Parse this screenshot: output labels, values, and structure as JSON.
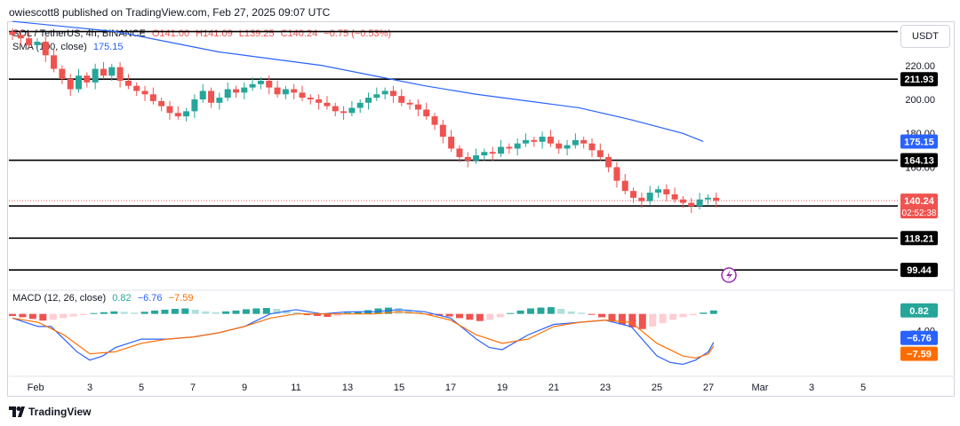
{
  "header": {
    "text": "owiescott8 published on TradingView.com, Feb 27, 2025 09:07 UTC"
  },
  "legend": {
    "symbol": "SOL / TetherUS, 4h, BINANCE",
    "open": "O141.00",
    "high": "H141.09",
    "low": "L139.25",
    "close": "C140.24",
    "change": "−0.75 (−0.53%)",
    "sma_name": "SMA (100, close)",
    "sma_value": "175.15",
    "macd_name": "MACD (12, 26, close)",
    "macd_hist": "0.82",
    "macd_line": "−6.76",
    "macd_signal": "−7.59"
  },
  "currency": "USDT",
  "footer": {
    "brand": "TradingView"
  },
  "colors": {
    "up": "#26a69a",
    "down": "#ef5350",
    "sma": "#2962ff",
    "macd": "#2962ff",
    "signal": "#ff6d00",
    "level": "#000000"
  },
  "chart_data": [
    {
      "type": "candlestick",
      "title": "SOL / TetherUS, 4h, BINANCE",
      "x_ticks": [
        "Feb",
        "3",
        "5",
        "7",
        "9",
        "11",
        "13",
        "15",
        "17",
        "19",
        "21",
        "23",
        "25",
        "27",
        "Mar",
        "3",
        "5"
      ],
      "y_ticks": [
        "220.00",
        "200.00",
        "180.00",
        "160.00"
      ],
      "ylim": [
        88,
        245
      ],
      "levels": [
        {
          "value": 240,
          "label": ""
        },
        {
          "value": 211.93,
          "label": "211.93"
        },
        {
          "value": 164.13,
          "label": "164.13"
        },
        {
          "value": 137.16,
          "label": "137.16"
        },
        {
          "value": 118.21,
          "label": "118.21"
        },
        {
          "value": 99.44,
          "label": "99.44"
        }
      ],
      "price_tag": {
        "value": 140.24,
        "label": "140.24",
        "countdown": "02:52:38"
      },
      "sma_tag": {
        "value": 175.15,
        "label": "175.15"
      },
      "sma_100": [
        [
          0,
          246
        ],
        [
          2,
          243
        ],
        [
          4,
          240
        ],
        [
          6,
          234
        ],
        [
          8,
          228
        ],
        [
          10,
          224
        ],
        [
          12,
          220
        ],
        [
          14,
          214
        ],
        [
          16,
          208
        ],
        [
          18,
          203
        ],
        [
          20,
          199
        ],
        [
          22,
          195
        ],
        [
          24,
          188
        ],
        [
          26,
          180
        ],
        [
          26.8,
          175.15
        ]
      ],
      "candles_close": [
        238,
        236,
        232,
        234,
        226,
        218,
        212,
        206,
        214,
        210,
        218,
        214,
        219,
        211,
        208,
        205,
        203,
        199,
        196,
        192,
        190,
        193,
        200,
        205,
        198,
        201,
        206,
        204,
        207,
        209,
        211,
        207,
        203,
        206,
        204,
        201,
        200,
        198,
        196,
        193,
        192,
        195,
        198,
        201,
        203,
        205,
        202,
        198,
        197,
        194,
        190,
        185,
        178,
        171,
        166,
        164,
        167,
        169,
        168,
        172,
        171,
        174,
        176,
        175,
        178,
        174,
        171,
        173,
        176,
        174,
        170,
        166,
        160,
        152,
        146,
        142,
        140,
        145,
        147,
        144,
        141,
        139,
        137,
        141,
        142,
        140.24
      ]
    },
    {
      "type": "macd",
      "title": "MACD (12, 26, close)",
      "y_ticks": [
        "−4.00"
      ],
      "ylim": [
        -14,
        5
      ],
      "hist_tag": {
        "value": 0.82,
        "label": "0.82"
      },
      "macd_tag": {
        "value": -6.76,
        "label": "−6.76"
      },
      "signal_tag": {
        "value": -7.59,
        "label": "−7.59"
      },
      "macd_line": [
        [
          0,
          -1
        ],
        [
          0.5,
          -2
        ],
        [
          1,
          -3
        ],
        [
          1.5,
          -3
        ],
        [
          2,
          -6
        ],
        [
          2.5,
          -9
        ],
        [
          3,
          -11
        ],
        [
          3.5,
          -10
        ],
        [
          4,
          -8
        ],
        [
          5,
          -6
        ],
        [
          6,
          -6
        ],
        [
          7,
          -5.5
        ],
        [
          8,
          -4.5
        ],
        [
          9,
          -3
        ],
        [
          10,
          0
        ],
        [
          11,
          1
        ],
        [
          12,
          0
        ],
        [
          13,
          0.5
        ],
        [
          14,
          0.5
        ],
        [
          15,
          1
        ],
        [
          16,
          0.5
        ],
        [
          17,
          -1
        ],
        [
          18,
          -6
        ],
        [
          18.5,
          -8
        ],
        [
          19,
          -8.5
        ],
        [
          20,
          -5
        ],
        [
          21,
          -2.5
        ],
        [
          22,
          -2
        ],
        [
          23,
          -1.5
        ],
        [
          24,
          -3
        ],
        [
          25,
          -10
        ],
        [
          25.5,
          -11.5
        ],
        [
          26,
          -12
        ],
        [
          26.5,
          -11
        ],
        [
          27,
          -9
        ],
        [
          27.2,
          -6.76
        ]
      ],
      "signal_line": [
        [
          0,
          -1
        ],
        [
          1,
          -2
        ],
        [
          2,
          -5
        ],
        [
          3,
          -9.5
        ],
        [
          4,
          -9
        ],
        [
          5,
          -7
        ],
        [
          6,
          -6
        ],
        [
          7,
          -5.5
        ],
        [
          8,
          -4.5
        ],
        [
          9,
          -3
        ],
        [
          10,
          -1
        ],
        [
          11,
          0
        ],
        [
          12,
          0
        ],
        [
          13,
          0
        ],
        [
          14,
          0
        ],
        [
          15,
          0.5
        ],
        [
          16,
          0
        ],
        [
          17,
          -1.5
        ],
        [
          18,
          -5
        ],
        [
          19,
          -7
        ],
        [
          20,
          -6
        ],
        [
          21,
          -3
        ],
        [
          22,
          -2
        ],
        [
          23,
          -1.5
        ],
        [
          24,
          -2
        ],
        [
          25,
          -7
        ],
        [
          26,
          -10
        ],
        [
          26.5,
          -10.5
        ],
        [
          27,
          -9.5
        ],
        [
          27.2,
          -7.59
        ]
      ],
      "histogram": [
        -0.5,
        -0.8,
        -1.2,
        -1.6,
        -1.4,
        -1.0,
        -0.6,
        -0.3,
        0.2,
        0.4,
        0.6,
        0.5,
        0.3,
        0.5,
        0.8,
        1.0,
        1.2,
        1.3,
        1.0,
        0.6,
        0.4,
        0.6,
        0.8,
        1.1,
        1.3,
        1.4,
        1.2,
        0.9,
        0.4,
        -0.3,
        -0.5,
        -0.7,
        -0.5,
        0.3,
        0.6,
        0.9,
        1.3,
        1.5,
        1.4,
        1.0,
        0.5,
        -0.2,
        -0.4,
        -0.6,
        -1.0,
        -1.4,
        -1.7,
        -1.4,
        -0.8,
        0.2,
        0.8,
        1.3,
        1.5,
        1.6,
        1.2,
        0.6,
        0.3,
        -0.2,
        -0.8,
        -1.6,
        -2.5,
        -3.2,
        -3.6,
        -3.0,
        -2.2,
        -1.4,
        -0.8,
        -0.3,
        0.3,
        0.82
      ]
    }
  ]
}
